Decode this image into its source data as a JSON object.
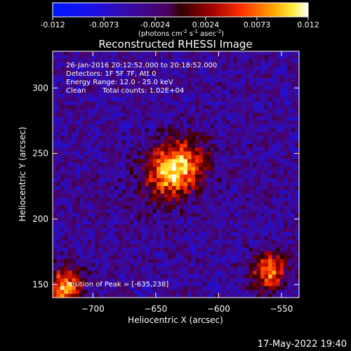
{
  "colorbar": {
    "ticks": [
      "-0.012",
      "-0.0073",
      "-0.0024",
      "0.0024",
      "0.0073",
      "0.012"
    ],
    "unit_main": "(photons cm",
    "unit_exp1": "-2",
    "unit_mid": " s",
    "unit_exp2": "-1",
    "unit_end": " asec",
    "unit_exp3": "-2",
    "unit_close": ")",
    "min": -0.012,
    "max": 0.012
  },
  "annotations": {
    "line1": "26-Jan-2016 20:12:52.000 to 20:18:52.000",
    "line2": "Detectors: 1F 5F 7F, Att 0",
    "line3": "Energy Range: 12.0 - 25.0 keV",
    "line4_a": "Clean",
    "line4_b": "Total counts: 1.02E+04",
    "peak": "Position of Peak = [-635,238]"
  },
  "footer": {
    "timestamp": "17-May-2022 19:40"
  },
  "chart_data": {
    "type": "heatmap",
    "title": "Reconstructed RHESSI Image",
    "xlabel": "Heliocentric X (arcsec)",
    "ylabel": "Heliocentric Y (arcsec)",
    "xlim": [
      -732,
      -536
    ],
    "ylim": [
      140,
      328
    ],
    "xticks": [
      -700,
      -650,
      -600,
      -550
    ],
    "xtick_labels": [
      "−700",
      "−650",
      "−600",
      "−550"
    ],
    "yticks": [
      150,
      200,
      250,
      300
    ],
    "ytick_labels": [
      "150",
      "200",
      "250",
      "300"
    ],
    "colormap": "rainbow-to-hot (blue, purple, red, orange, yellow, white)",
    "peak": {
      "x": -635,
      "y": 238
    },
    "sources": [
      {
        "x": -635,
        "y": 238,
        "intensity": 0.012
      },
      {
        "x": -722,
        "y": 148,
        "intensity": 0.0085
      },
      {
        "x": -560,
        "y": 160,
        "intensity": 0.0075
      }
    ],
    "background_level": -0.004
  }
}
